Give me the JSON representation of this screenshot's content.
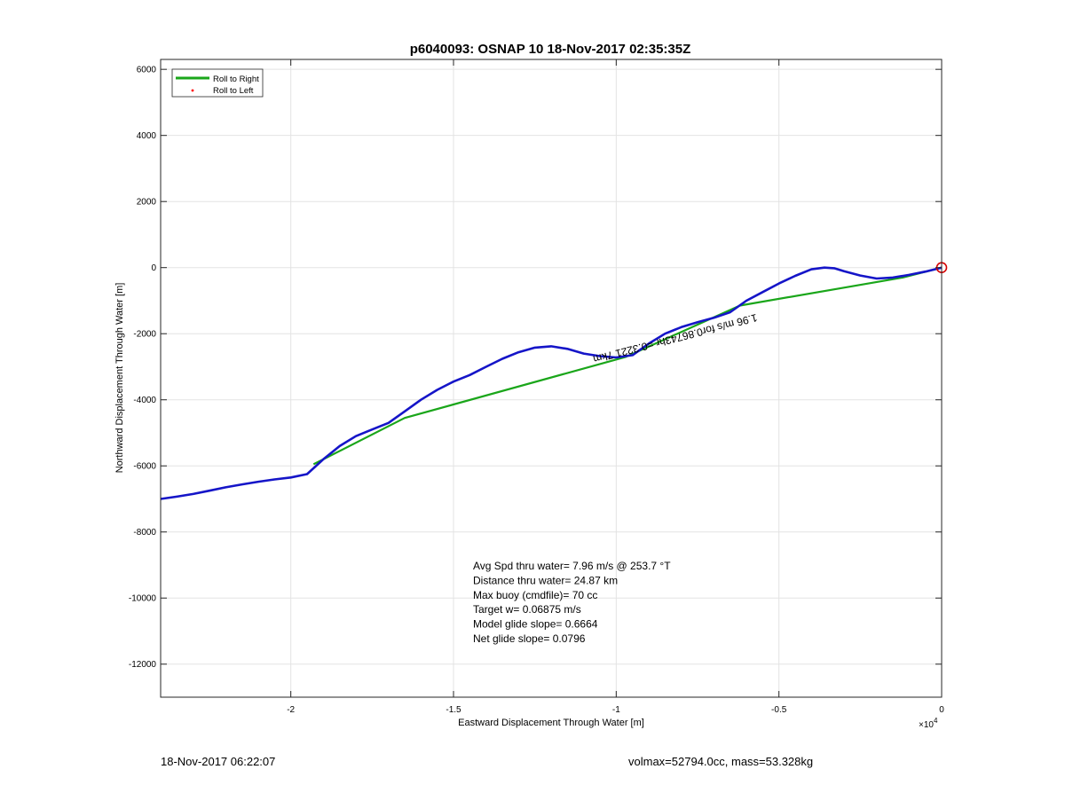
{
  "chart_data": {
    "type": "line",
    "title": "p6040093: OSNAP 10 18-Nov-2017 02:35:35Z",
    "xlabel": "Eastward Displacement Through Water [m]",
    "ylabel": "Northward Displacement Through Water [m]",
    "x_exponent_label": "×10",
    "x_exponent_power": "4",
    "xlim": [
      -2.4,
      0
    ],
    "ylim": [
      -13000,
      6300
    ],
    "grid": true,
    "legend_position": "top-left",
    "x_ticks": [
      {
        "v": -2,
        "label": "-2"
      },
      {
        "v": -1.5,
        "label": "-1.5"
      },
      {
        "v": -1,
        "label": "-1"
      },
      {
        "v": -0.5,
        "label": "-0.5"
      },
      {
        "v": 0,
        "label": "0"
      }
    ],
    "y_ticks": [
      {
        "v": 6000,
        "label": "6000"
      },
      {
        "v": 4000,
        "label": "4000"
      },
      {
        "v": 2000,
        "label": "2000"
      },
      {
        "v": 0,
        "label": "0"
      },
      {
        "v": -2000,
        "label": "-2000"
      },
      {
        "v": -4000,
        "label": "-4000"
      },
      {
        "v": -6000,
        "label": "-6000"
      },
      {
        "v": -8000,
        "label": "-8000"
      },
      {
        "v": -10000,
        "label": "-10000"
      },
      {
        "v": -12000,
        "label": "-12000"
      }
    ],
    "series": [
      {
        "name": "Roll to Right",
        "color": "#1aa61a",
        "points": [
          [
            0,
            0
          ],
          [
            -0.12,
            -300
          ],
          [
            -0.62,
            -1150
          ],
          [
            -0.97,
            -2700
          ],
          [
            -1.65,
            -4550
          ],
          [
            -1.93,
            -5950
          ]
        ]
      },
      {
        "name": "Roll to Left",
        "color": "#ff0000",
        "points": []
      },
      {
        "name": "",
        "color": "#1515c8",
        "points": [
          [
            0,
            0
          ],
          [
            -0.05,
            -120
          ],
          [
            -0.1,
            -220
          ],
          [
            -0.15,
            -300
          ],
          [
            -0.2,
            -330
          ],
          [
            -0.25,
            -240
          ],
          [
            -0.3,
            -110
          ],
          [
            -0.33,
            -20
          ],
          [
            -0.36,
            0
          ],
          [
            -0.4,
            -50
          ],
          [
            -0.45,
            -250
          ],
          [
            -0.5,
            -480
          ],
          [
            -0.55,
            -740
          ],
          [
            -0.6,
            -1000
          ],
          [
            -0.65,
            -1350
          ],
          [
            -0.7,
            -1520
          ],
          [
            -0.75,
            -1650
          ],
          [
            -0.8,
            -1800
          ],
          [
            -0.85,
            -2000
          ],
          [
            -0.9,
            -2300
          ],
          [
            -0.95,
            -2650
          ],
          [
            -1.0,
            -2720
          ],
          [
            -1.05,
            -2680
          ],
          [
            -1.1,
            -2600
          ],
          [
            -1.15,
            -2460
          ],
          [
            -1.2,
            -2380
          ],
          [
            -1.25,
            -2420
          ],
          [
            -1.3,
            -2560
          ],
          [
            -1.35,
            -2760
          ],
          [
            -1.4,
            -3000
          ],
          [
            -1.45,
            -3250
          ],
          [
            -1.5,
            -3450
          ],
          [
            -1.55,
            -3700
          ],
          [
            -1.6,
            -4000
          ],
          [
            -1.65,
            -4350
          ],
          [
            -1.7,
            -4700
          ],
          [
            -1.75,
            -4900
          ],
          [
            -1.8,
            -5100
          ],
          [
            -1.85,
            -5400
          ],
          [
            -1.9,
            -5800
          ],
          [
            -1.95,
            -6250
          ],
          [
            -2.0,
            -6350
          ],
          [
            -2.05,
            -6410
          ],
          [
            -2.1,
            -6480
          ],
          [
            -2.15,
            -6560
          ],
          [
            -2.2,
            -6650
          ],
          [
            -2.25,
            -6750
          ],
          [
            -2.3,
            -6850
          ],
          [
            -2.35,
            -6930
          ],
          [
            -2.4,
            -7000
          ]
        ]
      }
    ],
    "start_marker": {
      "x": 0,
      "y": 0,
      "color": "#d40000"
    },
    "segment_label": {
      "text": "1.96 m/s for0.86743hr =0.3221 7km",
      "x": -0.57,
      "y": -1400,
      "rotation_deg": 165.5
    },
    "annotations": [
      "Avg Spd thru water=  7.96 m/s @ 253.7 °T",
      "Distance thru water= 24.87 km",
      "Max buoy (cmdfile)= 70 cc",
      "Target w= 0.06875 m/s",
      "Model glide slope= 0.6664",
      "Net glide slope= 0.0796"
    ]
  },
  "footer": {
    "left": "18-Nov-2017 06:22:07",
    "right": "volmax=52794.0cc, mass=53.328kg"
  }
}
